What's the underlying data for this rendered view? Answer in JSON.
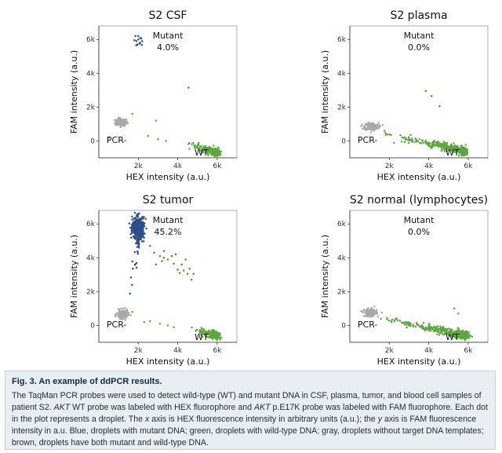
{
  "colors": {
    "mutant": "#2e4d8f",
    "wildtype": "#5aa83c",
    "negative": "#a9a9a9",
    "both": "#a0632d",
    "panel_bg": "#ffffff",
    "axis": "#333333"
  },
  "chart_data": [
    {
      "type": "scatter",
      "title": "S2  CSF",
      "xlabel": "HEX intensity (a.u.)",
      "ylabel": "FAM intensity (a.u.)",
      "xlim": [
        0,
        7000
      ],
      "ylim": [
        -1000,
        6800
      ],
      "x_ticks": [
        2000,
        4000,
        6000
      ],
      "x_tick_labels": [
        "2k",
        "4k",
        "6k"
      ],
      "y_ticks": [
        0,
        2000,
        4000,
        6000
      ],
      "y_tick_labels": [
        "0",
        "2k",
        "4k",
        "6k"
      ],
      "mutant_label": "Mutant",
      "mutant_percent": "4.0%",
      "pcr_label": "PCR-",
      "wt_label": "WT",
      "series": [
        {
          "name": "Mutant",
          "color_key": "mutant",
          "points": [
            [
              1850,
              6200
            ],
            [
              1900,
              5900
            ],
            [
              2000,
              6000
            ],
            [
              2100,
              5800
            ],
            [
              2150,
              6050
            ],
            [
              1950,
              5700
            ],
            [
              2050,
              5750
            ],
            [
              2200,
              5900
            ],
            [
              1800,
              5950
            ],
            [
              2000,
              6200
            ],
            [
              2100,
              6100
            ],
            [
              1900,
              5650
            ],
            [
              2180,
              5680
            ]
          ]
        },
        {
          "name": "Both",
          "color_key": "both",
          "points": [
            [
              4550,
              3150
            ]
          ]
        },
        {
          "name": "Negative",
          "color_key": "negative",
          "cluster": {
            "cx": 1150,
            "cy": 1100,
            "sx": 150,
            "sy": 110,
            "n": 160
          }
        },
        {
          "name": "Wild-type",
          "color_key": "wildtype",
          "trail": {
            "x0": 4600,
            "y0": -200,
            "x1": 6000,
            "y1": -700,
            "n": 300,
            "spread": 80
          }
        },
        {
          "name": "Scattered",
          "color_key": "wildtype",
          "points": [
            [
              1700,
              1600
            ],
            [
              2500,
              300
            ],
            [
              3000,
              100
            ],
            [
              3400,
              0
            ],
            [
              500,
              200
            ],
            [
              2900,
              1200
            ]
          ]
        }
      ]
    },
    {
      "type": "scatter",
      "title": "S2  plasma",
      "xlabel": "HEX intensity (a.u.)",
      "ylabel": "FAM intensity (a.u.)",
      "xlim": [
        0,
        7000
      ],
      "ylim": [
        -1000,
        6800
      ],
      "x_ticks": [
        2000,
        4000,
        6000
      ],
      "x_tick_labels": [
        "2k",
        "4k",
        "6k"
      ],
      "y_ticks": [
        0,
        2000,
        4000,
        6000
      ],
      "y_tick_labels": [
        "0",
        "2k",
        "4k",
        "6k"
      ],
      "mutant_label": "Mutant",
      "mutant_percent": "0.0%",
      "pcr_label": "PCR-",
      "wt_label": "WT",
      "series": [
        {
          "name": "Both",
          "color_key": "both",
          "points": [
            [
              3850,
              2950
            ],
            [
              4150,
              2650
            ],
            [
              4550,
              2050
            ]
          ]
        },
        {
          "name": "Negative",
          "color_key": "negative",
          "cluster": {
            "cx": 1100,
            "cy": 850,
            "sx": 180,
            "sy": 110,
            "n": 200
          }
        },
        {
          "name": "Wild-type",
          "color_key": "wildtype",
          "trail": {
            "x0": 1500,
            "y0": 500,
            "x1": 5800,
            "y1": -600,
            "n": 420,
            "spread": 90
          }
        }
      ]
    },
    {
      "type": "scatter",
      "title": "S2  tumor",
      "xlabel": "HEX intensity (a.u.)",
      "ylabel": "FAM intensity (a.u.)",
      "xlim": [
        0,
        7000
      ],
      "ylim": [
        -1000,
        6800
      ],
      "x_ticks": [
        2000,
        4000,
        6000
      ],
      "x_tick_labels": [
        "2k",
        "4k",
        "6k"
      ],
      "y_ticks": [
        0,
        2000,
        4000,
        6000
      ],
      "y_tick_labels": [
        "0",
        "2k",
        "4k",
        "6k"
      ],
      "mutant_label": "Mutant",
      "mutant_percent": "45.2%",
      "pcr_label": "PCR-",
      "wt_label": "WT",
      "series": [
        {
          "name": "Mutant",
          "color_key": "mutant",
          "cluster": {
            "cx": 2000,
            "cy": 5750,
            "sx": 150,
            "sy": 320,
            "n": 420
          }
        },
        {
          "name": "Mutant tail",
          "color_key": "mutant",
          "trail": {
            "x0": 1600,
            "y0": 1200,
            "x1": 2000,
            "y1": 5200,
            "n": 40,
            "spread": 60
          }
        },
        {
          "name": "Both",
          "color_key": "both",
          "points": [
            [
              2600,
              4700
            ],
            [
              2800,
              4300
            ],
            [
              3100,
              4100
            ],
            [
              3200,
              3800
            ],
            [
              3300,
              4400
            ],
            [
              3500,
              3900
            ],
            [
              3700,
              4100
            ],
            [
              3800,
              3650
            ],
            [
              4000,
              3300
            ],
            [
              4100,
              3100
            ],
            [
              4200,
              3600
            ],
            [
              4300,
              3250
            ],
            [
              4500,
              3050
            ],
            [
              4700,
              2700
            ],
            [
              4800,
              3050
            ],
            [
              4400,
              3900
            ],
            [
              3900,
              4200
            ],
            [
              2900,
              3600
            ],
            [
              3300,
              4000
            ],
            [
              4600,
              3350
            ]
          ]
        },
        {
          "name": "Negative",
          "color_key": "negative",
          "cluster": {
            "cx": 1200,
            "cy": 650,
            "sx": 140,
            "sy": 130,
            "n": 140
          }
        },
        {
          "name": "Wild-type",
          "color_key": "wildtype",
          "trail": {
            "x0": 4800,
            "y0": -250,
            "x1": 6000,
            "y1": -600,
            "n": 230,
            "spread": 90
          }
        },
        {
          "name": "Scattered",
          "color_key": "wildtype",
          "points": [
            [
              2600,
              250
            ],
            [
              3100,
              100
            ],
            [
              3500,
              0
            ],
            [
              3800,
              -100
            ],
            [
              1700,
              800
            ],
            [
              2300,
              200
            ]
          ]
        }
      ]
    },
    {
      "type": "scatter",
      "title": "S2  normal (lymphocytes)",
      "xlabel": "HEX intensity (a.u.)",
      "ylabel": "FAM intensity (a.u.)",
      "xlim": [
        0,
        7000
      ],
      "ylim": [
        -1000,
        6800
      ],
      "x_ticks": [
        2000,
        4000,
        6000
      ],
      "x_tick_labels": [
        "2k",
        "4k",
        "6k"
      ],
      "y_ticks": [
        0,
        2000,
        4000,
        6000
      ],
      "y_tick_labels": [
        "0",
        "2k",
        "4k",
        "6k"
      ],
      "mutant_label": "Mutant",
      "mutant_percent": "0.0%",
      "pcr_label": "PCR-",
      "wt_label": "WT",
      "series": [
        {
          "name": "Negative",
          "color_key": "negative",
          "cluster": {
            "cx": 1050,
            "cy": 750,
            "sx": 160,
            "sy": 110,
            "n": 180
          }
        },
        {
          "name": "Wild-type",
          "color_key": "wildtype",
          "trail": {
            "x0": 1500,
            "y0": 450,
            "x1": 5900,
            "y1": -600,
            "n": 440,
            "spread": 90
          }
        },
        {
          "name": "Scattered",
          "color_key": "wildtype",
          "points": [
            [
              5300,
              1000
            ],
            [
              5500,
              700
            ]
          ]
        }
      ]
    }
  ],
  "caption": {
    "title": "Fig. 3.  An example of ddPCR results.",
    "body_html": "The TaqMan PCR probes were used to detect wild-type (WT) and mutant DNA in CSF, plasma, tumor, and blood cell samples of patient S2. <i>AKT</i> WT probe was labeled with HEX fluorophore and <i>AKT</i> p.E17K probe was labeled with FAM fluorophore. Each dot in the plot represents a droplet. The <i>x</i> axis is HEX fluorescence intensity in arbitrary units (a.u.); the <i>y</i> axis is FAM fluorescence intensity in a.u. Blue, droplets with mutant DNA; green, droplets with wild-type DNA; gray, droplets without target DNA templates; brown, droplets have both mutant and wild-type DNA."
  }
}
